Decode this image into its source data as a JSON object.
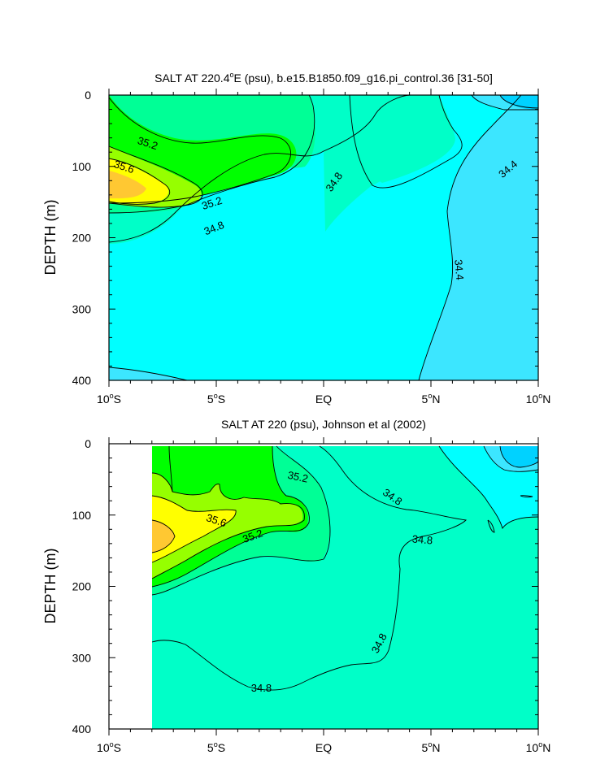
{
  "chart_data": [
    {
      "type": "contour",
      "title": "SALT AT 220.4°E (psu), b.e15.B1850.f09_g16.pi_control.36 [31-50]",
      "title_parts": {
        "pre": "SALT AT 220.4",
        "sup": "o",
        "post": "E (psu), b.e15.B1850.f09_g16.pi_control.36 [31-50]"
      },
      "ylabel": "DEPTH (m)",
      "xlim": [
        -10,
        10
      ],
      "ylim": [
        400,
        0
      ],
      "y_ticks": [
        0,
        100,
        200,
        300,
        400
      ],
      "x_ticks": [
        {
          "value": -10,
          "num": "10",
          "hemi": "S"
        },
        {
          "value": -5,
          "num": "5",
          "hemi": "S"
        },
        {
          "value": 0,
          "num": "EQ",
          "hemi": ""
        },
        {
          "value": 5,
          "num": "5",
          "hemi": "N"
        },
        {
          "value": 10,
          "num": "10",
          "hemi": "N"
        }
      ],
      "fill_levels": [
        {
          "range": "<34.2",
          "color": "#00d2ff"
        },
        {
          "range": "34.2-34.4",
          "color": "#3ce6ff"
        },
        {
          "range": "34.4-34.6",
          "color": "#00ffff"
        },
        {
          "range": "34.6-34.8",
          "color": "#00ffff"
        },
        {
          "range": "34.8-35.0",
          "color": "#00ffc8"
        },
        {
          "range": "35.0-35.2",
          "color": "#00ff96"
        },
        {
          "range": "35.2-35.4",
          "color": "#00ff00"
        },
        {
          "range": "35.4-35.6",
          "color": "#96ff00"
        },
        {
          "range": "35.6-35.8",
          "color": "#ffff00"
        },
        {
          "range": ">35.8",
          "color": "#ffc832"
        }
      ],
      "contour_labels": [
        {
          "text": "35.2",
          "x": -8.2,
          "y": 68,
          "rot": 18
        },
        {
          "text": "35.6",
          "x": -9.3,
          "y": 101,
          "rot": 18
        },
        {
          "text": "35.2",
          "x": -5.2,
          "y": 152,
          "rot": -18
        },
        {
          "text": "34.8",
          "x": -5.1,
          "y": 187,
          "rot": -22
        },
        {
          "text": "34.8",
          "x": 0.5,
          "y": 122,
          "rot": -55
        },
        {
          "text": "34.4",
          "x": 8.6,
          "y": 104,
          "rot": -40
        },
        {
          "text": "34.4",
          "x": 6.3,
          "y": 245,
          "rot": 85
        }
      ]
    },
    {
      "type": "contour",
      "title": "SALT AT 220 (psu), Johnson et al (2002)",
      "ylabel": "DEPTH (m)",
      "xlim": [
        -10,
        10
      ],
      "ylim": [
        400,
        0
      ],
      "data_xlim": [
        -8,
        10
      ],
      "y_ticks": [
        0,
        100,
        200,
        300,
        400
      ],
      "x_ticks": [
        {
          "value": -10,
          "num": "10",
          "hemi": "S"
        },
        {
          "value": -5,
          "num": "5",
          "hemi": "S"
        },
        {
          "value": 0,
          "num": "EQ",
          "hemi": ""
        },
        {
          "value": 5,
          "num": "5",
          "hemi": "N"
        },
        {
          "value": 10,
          "num": "10",
          "hemi": "N"
        }
      ],
      "contour_labels": [
        {
          "text": "35.2",
          "x": -1.2,
          "y": 47,
          "rot": 12
        },
        {
          "text": "34.8",
          "x": 3.2,
          "y": 75,
          "rot": 35
        },
        {
          "text": "35.6",
          "x": -5.0,
          "y": 108,
          "rot": 18
        },
        {
          "text": "35.2",
          "x": -3.3,
          "y": 130,
          "rot": -20
        },
        {
          "text": "34.8",
          "x": 4.6,
          "y": 135,
          "rot": 5
        },
        {
          "text": "34.8",
          "x": 2.6,
          "y": 280,
          "rot": -62
        },
        {
          "text": "34.8",
          "x": -2.9,
          "y": 343,
          "rot": 0
        }
      ]
    }
  ]
}
